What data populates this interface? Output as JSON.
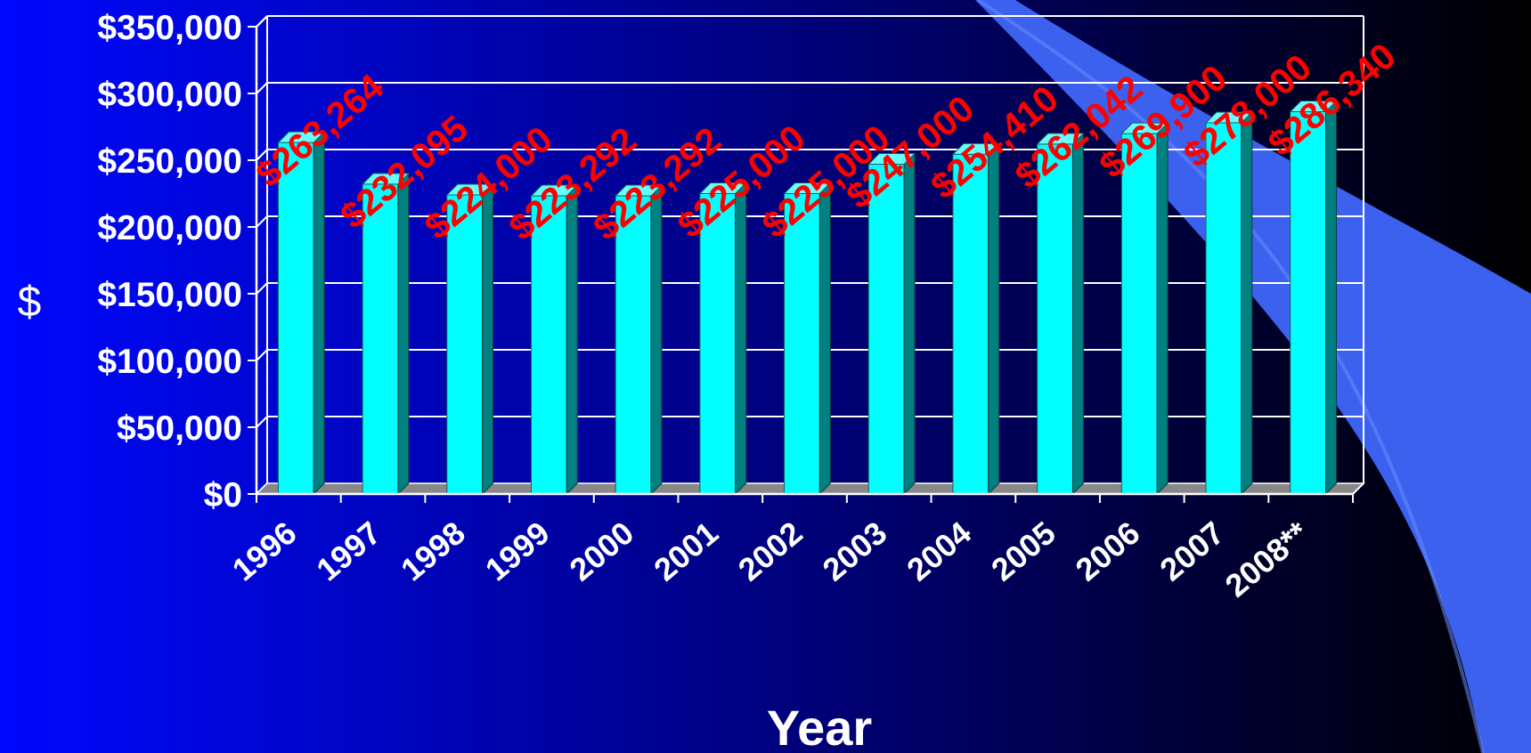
{
  "slide": {
    "background_colors": [
      "#0008ff",
      "#000070",
      "#000000"
    ],
    "swoosh_color": "#3b61ee"
  },
  "chart_data": {
    "type": "bar",
    "style": "3d",
    "categories": [
      "1996",
      "1997",
      "1998",
      "1999",
      "2000",
      "2001",
      "2002",
      "2003",
      "2004",
      "2005",
      "2006",
      "2007",
      "2008**"
    ],
    "values": [
      263264,
      232095,
      224000,
      223292,
      223292,
      225000,
      225000,
      247000,
      254410,
      262042,
      269900,
      278000,
      286340
    ],
    "data_labels": [
      "$263,264",
      "$232,095",
      "$224,000",
      "$223,292",
      "$223,292",
      "$225,000",
      "$225,000",
      "$247,000",
      "$254,410",
      "$262,042",
      "$269,900",
      "$278,000",
      "$286,340"
    ],
    "title": "",
    "xlabel": "Year",
    "ylabel": "$",
    "ylim": [
      0,
      350000
    ],
    "ytick_labels": [
      "$0",
      "$50,000",
      "$100,000",
      "$150,000",
      "$200,000",
      "$250,000",
      "$300,000",
      "$350,000"
    ],
    "grid": true,
    "legend": "none",
    "colors": {
      "bar_front": "#00ffff",
      "bar_side": "#008080",
      "bar_top": "#66ffff",
      "data_label": "#ff0000",
      "axis": "#ffffff",
      "floor": "#888888"
    }
  }
}
